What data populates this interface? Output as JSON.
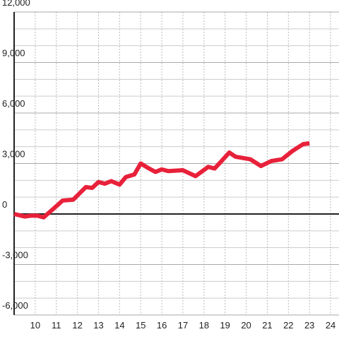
{
  "chart_data": {
    "type": "line",
    "x": [
      9.0,
      9.5,
      9.8,
      10.1,
      10.4,
      10.9,
      11.3,
      11.8,
      12.4,
      12.7,
      13.0,
      13.3,
      13.6,
      14.0,
      14.3,
      14.7,
      15.0,
      15.4,
      15.7,
      16.0,
      16.3,
      17.0,
      17.6,
      18.2,
      18.5,
      18.8,
      19.2,
      19.5,
      20.2,
      20.7,
      21.2,
      21.7,
      22.2,
      22.7,
      23.0
    ],
    "series": [
      {
        "color": "#e8213a",
        "values": [
          0,
          -150,
          -100,
          -100,
          -200,
          350,
          800,
          850,
          1600,
          1550,
          1900,
          1800,
          1950,
          1750,
          2200,
          2350,
          3000,
          2700,
          2500,
          2650,
          2550,
          2600,
          2250,
          2800,
          2700,
          3100,
          3650,
          3400,
          3250,
          2850,
          3150,
          3250,
          3750,
          4150,
          4200
        ]
      }
    ],
    "xlim": [
      9,
      24.4
    ],
    "xticks": [
      10,
      11,
      12,
      13,
      14,
      15,
      16,
      17,
      18,
      19,
      20,
      21,
      22,
      23,
      24
    ],
    "ylim": [
      -6000,
      12000
    ],
    "yticks": [
      {
        "value": -6000,
        "label": "-6,000"
      },
      {
        "value": -3000,
        "label": "-3,000"
      },
      0,
      {
        "value": 3000,
        "label": "3,000"
      },
      {
        "value": 6000,
        "label": "6,000"
      },
      {
        "value": 9000,
        "label": "9,000"
      },
      {
        "value": 12000,
        "label": "12,000"
      }
    ],
    "minor_yticks": [
      -5000,
      -4000,
      -2000,
      -1000,
      1000,
      2000,
      4000,
      5000,
      7000,
      8000,
      10000,
      11000
    ],
    "grid": true
  }
}
